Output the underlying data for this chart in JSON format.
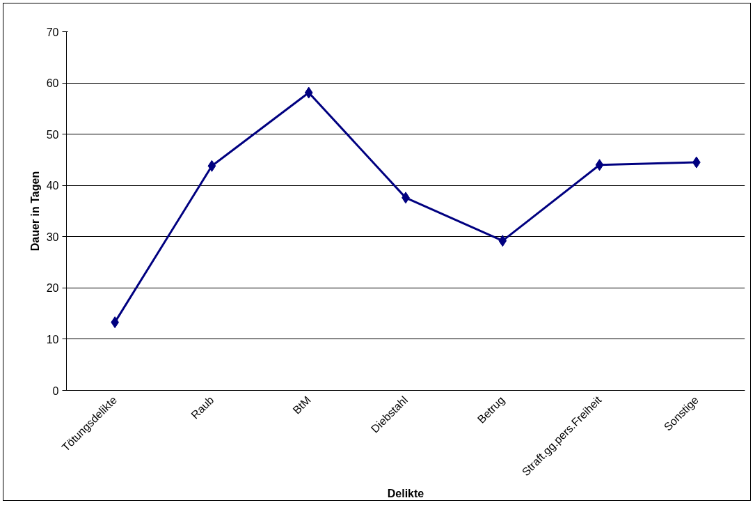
{
  "chart_data": {
    "type": "line",
    "xlabel": "Delikte",
    "ylabel": "Dauer in Tagen",
    "categories": [
      "Tötungsdelikte",
      "Raub",
      "BtM",
      "Diebstahl",
      "Betrug",
      "Straft.gg.pers.Freiheit",
      "Sonstige"
    ],
    "series": [
      {
        "color": "#000080",
        "values": [
          13.3,
          43.8,
          58.1,
          37.6,
          29.2,
          44.0,
          44.5
        ]
      }
    ],
    "ylim": [
      0,
      70
    ],
    "yticks": [
      0,
      10,
      20,
      30,
      40,
      50,
      60,
      70
    ],
    "grid": "y",
    "marker": "diamond",
    "line_style": "solid"
  }
}
